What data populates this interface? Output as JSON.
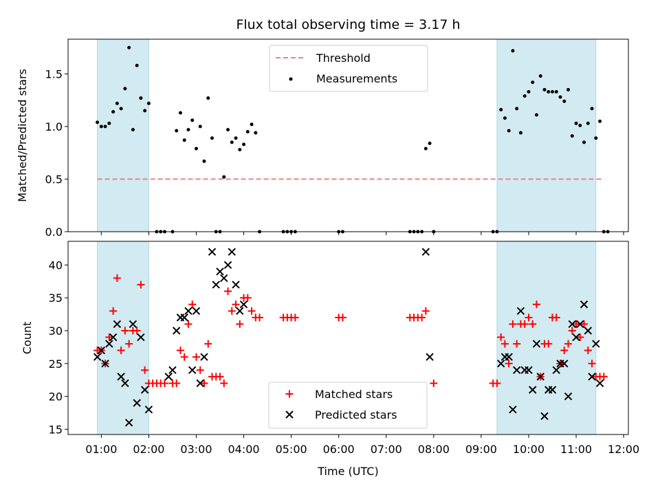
{
  "chart_data": [
    {
      "type": "scatter",
      "title": "Flux total observing time = 3.17 h",
      "xlabel": "",
      "ylabel": "Matched/Predicted stars",
      "ylim": [
        0,
        1.83
      ],
      "yticks": [
        "0.0",
        "0.5",
        "1.0",
        "1.5"
      ],
      "grid": false,
      "legend_position": "top-center",
      "shaded_intervals": [
        [
          "00:55",
          "02:00"
        ],
        [
          "09:20",
          "11:25"
        ]
      ],
      "threshold": {
        "name": "Threshold",
        "value": 0.5,
        "x_range": [
          "00:55",
          "11:35"
        ],
        "color": "#f08080"
      },
      "series": [
        {
          "name": "Measurements",
          "color": "#000000",
          "points": [
            [
              "00:55",
              1.04
            ],
            [
              "01:00",
              1.0
            ],
            [
              "01:05",
              1.0
            ],
            [
              "01:10",
              1.03
            ],
            [
              "01:15",
              1.14
            ],
            [
              "01:20",
              1.22
            ],
            [
              "01:25",
              1.17
            ],
            [
              "01:30",
              1.36
            ],
            [
              "01:35",
              1.75
            ],
            [
              "01:40",
              0.97
            ],
            [
              "01:45",
              1.58
            ],
            [
              "01:50",
              1.27
            ],
            [
              "01:55",
              1.15
            ],
            [
              "02:00",
              1.22
            ],
            [
              "02:10",
              0.0
            ],
            [
              "02:15",
              0.0
            ],
            [
              "02:20",
              0.0
            ],
            [
              "02:30",
              0.0
            ],
            [
              "02:35",
              0.96
            ],
            [
              "02:40",
              1.13
            ],
            [
              "02:45",
              0.87
            ],
            [
              "02:50",
              0.97
            ],
            [
              "02:55",
              1.06
            ],
            [
              "03:00",
              0.79
            ],
            [
              "03:05",
              1.0
            ],
            [
              "03:10",
              0.67
            ],
            [
              "03:15",
              1.27
            ],
            [
              "03:20",
              0.89
            ],
            [
              "03:25",
              0.0
            ],
            [
              "03:30",
              0.0
            ],
            [
              "03:35",
              0.52
            ],
            [
              "03:40",
              0.97
            ],
            [
              "03:45",
              0.85
            ],
            [
              "03:50",
              0.89
            ],
            [
              "03:55",
              0.78
            ],
            [
              "04:00",
              0.83
            ],
            [
              "04:05",
              0.95
            ],
            [
              "04:10",
              1.02
            ],
            [
              "04:15",
              0.94
            ],
            [
              "04:20",
              0.0
            ],
            [
              "04:50",
              0.0
            ],
            [
              "04:55",
              0.0
            ],
            [
              "05:00",
              0.0
            ],
            [
              "05:05",
              0.0
            ],
            [
              "06:00",
              0.0
            ],
            [
              "06:05",
              0.0
            ],
            [
              "07:30",
              0.0
            ],
            [
              "07:35",
              0.0
            ],
            [
              "07:40",
              0.0
            ],
            [
              "07:45",
              0.0
            ],
            [
              "07:50",
              0.79
            ],
            [
              "07:55",
              0.84
            ],
            [
              "08:00",
              0.0
            ],
            [
              "09:15",
              0.0
            ],
            [
              "09:20",
              0.0
            ],
            [
              "09:25",
              1.16
            ],
            [
              "09:30",
              1.08
            ],
            [
              "09:35",
              0.96
            ],
            [
              "09:40",
              1.72
            ],
            [
              "09:45",
              1.17
            ],
            [
              "09:50",
              0.94
            ],
            [
              "09:55",
              1.29
            ],
            [
              "10:00",
              1.33
            ],
            [
              "10:05",
              1.42
            ],
            [
              "10:10",
              1.11
            ],
            [
              "10:15",
              1.48
            ],
            [
              "10:20",
              1.35
            ],
            [
              "10:25",
              1.33
            ],
            [
              "10:30",
              1.33
            ],
            [
              "10:35",
              1.33
            ],
            [
              "10:40",
              1.28
            ],
            [
              "10:45",
              1.24
            ],
            [
              "10:50",
              1.35
            ],
            [
              "10:55",
              0.91
            ],
            [
              "11:00",
              1.03
            ],
            [
              "11:05",
              1.01
            ],
            [
              "11:10",
              0.85
            ],
            [
              "11:15",
              1.03
            ],
            [
              "11:20",
              1.17
            ],
            [
              "11:25",
              0.89
            ],
            [
              "11:30",
              1.05
            ],
            [
              "11:35",
              0.0
            ],
            [
              "11:40",
              0.0
            ]
          ]
        }
      ]
    },
    {
      "type": "scatter",
      "title": "",
      "xlabel": "Time (UTC)",
      "ylabel": "Count",
      "ylim": [
        14.2,
        43.6
      ],
      "yticks": [
        "15",
        "20",
        "25",
        "30",
        "35",
        "40"
      ],
      "xticks": [
        "01:00",
        "02:00",
        "03:00",
        "04:00",
        "05:00",
        "06:00",
        "07:00",
        "08:00",
        "09:00",
        "10:00",
        "11:00",
        "12:00"
      ],
      "grid": false,
      "legend_position": "bottom-center",
      "shaded_intervals": [
        [
          "00:55",
          "02:00"
        ],
        [
          "09:20",
          "11:25"
        ]
      ],
      "series": [
        {
          "name": "Matched stars",
          "color": "#ff0000",
          "marker": "plus",
          "points": [
            [
              "00:55",
              27
            ],
            [
              "01:00",
              27
            ],
            [
              "01:05",
              25
            ],
            [
              "01:10",
              29
            ],
            [
              "01:15",
              33
            ],
            [
              "01:20",
              38
            ],
            [
              "01:25",
              27
            ],
            [
              "01:30",
              30
            ],
            [
              "01:35",
              28
            ],
            [
              "01:40",
              30
            ],
            [
              "01:45",
              30
            ],
            [
              "01:50",
              37
            ],
            [
              "01:55",
              24
            ],
            [
              "02:00",
              22
            ],
            [
              "02:05",
              22
            ],
            [
              "02:10",
              22
            ],
            [
              "02:15",
              22
            ],
            [
              "02:20",
              22
            ],
            [
              "02:30",
              22
            ],
            [
              "02:35",
              22
            ],
            [
              "02:40",
              27
            ],
            [
              "02:45",
              26
            ],
            [
              "02:50",
              31
            ],
            [
              "02:55",
              34
            ],
            [
              "03:00",
              26
            ],
            [
              "03:05",
              24
            ],
            [
              "03:10",
              22
            ],
            [
              "03:15",
              28
            ],
            [
              "03:20",
              23
            ],
            [
              "03:25",
              23
            ],
            [
              "03:30",
              23
            ],
            [
              "03:35",
              22
            ],
            [
              "03:40",
              36
            ],
            [
              "03:45",
              33
            ],
            [
              "03:50",
              34
            ],
            [
              "03:55",
              31
            ],
            [
              "04:00",
              35
            ],
            [
              "04:05",
              35
            ],
            [
              "04:10",
              33
            ],
            [
              "04:15",
              32
            ],
            [
              "04:20",
              32
            ],
            [
              "04:50",
              32
            ],
            [
              "04:55",
              32
            ],
            [
              "05:00",
              32
            ],
            [
              "05:05",
              32
            ],
            [
              "06:00",
              32
            ],
            [
              "06:05",
              32
            ],
            [
              "07:30",
              32
            ],
            [
              "07:35",
              32
            ],
            [
              "07:40",
              32
            ],
            [
              "07:45",
              32
            ],
            [
              "07:50",
              33
            ],
            [
              "08:00",
              22
            ],
            [
              "09:15",
              22
            ],
            [
              "09:20",
              22
            ],
            [
              "09:25",
              29
            ],
            [
              "09:30",
              28
            ],
            [
              "09:35",
              25
            ],
            [
              "09:40",
              31
            ],
            [
              "09:45",
              28
            ],
            [
              "09:50",
              31
            ],
            [
              "09:55",
              31
            ],
            [
              "10:00",
              32
            ],
            [
              "10:05",
              31
            ],
            [
              "10:10",
              34
            ],
            [
              "10:15",
              23
            ],
            [
              "10:20",
              28
            ],
            [
              "10:25",
              28
            ],
            [
              "10:30",
              32
            ],
            [
              "10:35",
              32
            ],
            [
              "10:40",
              25
            ],
            [
              "10:45",
              27
            ],
            [
              "10:50",
              28
            ],
            [
              "10:55",
              30
            ],
            [
              "11:00",
              31
            ],
            [
              "11:05",
              29
            ],
            [
              "11:10",
              31
            ],
            [
              "11:15",
              27
            ],
            [
              "11:20",
              25
            ],
            [
              "11:25",
              23
            ],
            [
              "11:30",
              23
            ],
            [
              "11:35",
              23
            ]
          ]
        },
        {
          "name": "Predicted stars",
          "color": "#000000",
          "marker": "x",
          "points": [
            [
              "00:55",
              26
            ],
            [
              "01:00",
              27
            ],
            [
              "01:05",
              25
            ],
            [
              "01:10",
              28
            ],
            [
              "01:15",
              29
            ],
            [
              "01:20",
              31
            ],
            [
              "01:25",
              23
            ],
            [
              "01:30",
              22
            ],
            [
              "01:35",
              16
            ],
            [
              "01:40",
              31
            ],
            [
              "01:45",
              19
            ],
            [
              "01:50",
              29
            ],
            [
              "01:55",
              21
            ],
            [
              "02:00",
              18
            ],
            [
              "02:25",
              23
            ],
            [
              "02:30",
              24
            ],
            [
              "02:35",
              30
            ],
            [
              "02:40",
              32
            ],
            [
              "02:45",
              32
            ],
            [
              "02:50",
              33
            ],
            [
              "02:55",
              24
            ],
            [
              "03:00",
              33
            ],
            [
              "03:05",
              22
            ],
            [
              "03:10",
              26
            ],
            [
              "03:20",
              42
            ],
            [
              "03:25",
              37
            ],
            [
              "03:30",
              39
            ],
            [
              "03:35",
              38
            ],
            [
              "03:40",
              40
            ],
            [
              "03:45",
              42
            ],
            [
              "03:50",
              37
            ],
            [
              "03:55",
              33
            ],
            [
              "04:00",
              34
            ],
            [
              "07:50",
              42
            ],
            [
              "07:55",
              26
            ],
            [
              "09:25",
              25
            ],
            [
              "09:30",
              26
            ],
            [
              "09:35",
              26
            ],
            [
              "09:40",
              18
            ],
            [
              "09:45",
              24
            ],
            [
              "09:50",
              33
            ],
            [
              "09:55",
              24
            ],
            [
              "10:00",
              24
            ],
            [
              "10:05",
              21
            ],
            [
              "10:10",
              28
            ],
            [
              "10:15",
              23
            ],
            [
              "10:20",
              17
            ],
            [
              "10:25",
              21
            ],
            [
              "10:30",
              21
            ],
            [
              "10:35",
              24
            ],
            [
              "10:40",
              25
            ],
            [
              "10:45",
              25
            ],
            [
              "10:50",
              20
            ],
            [
              "10:55",
              31
            ],
            [
              "11:00",
              29
            ],
            [
              "11:05",
              31
            ],
            [
              "11:10",
              34
            ],
            [
              "11:15",
              30
            ],
            [
              "11:20",
              23
            ],
            [
              "11:25",
              28
            ],
            [
              "11:30",
              22
            ]
          ]
        }
      ]
    }
  ]
}
